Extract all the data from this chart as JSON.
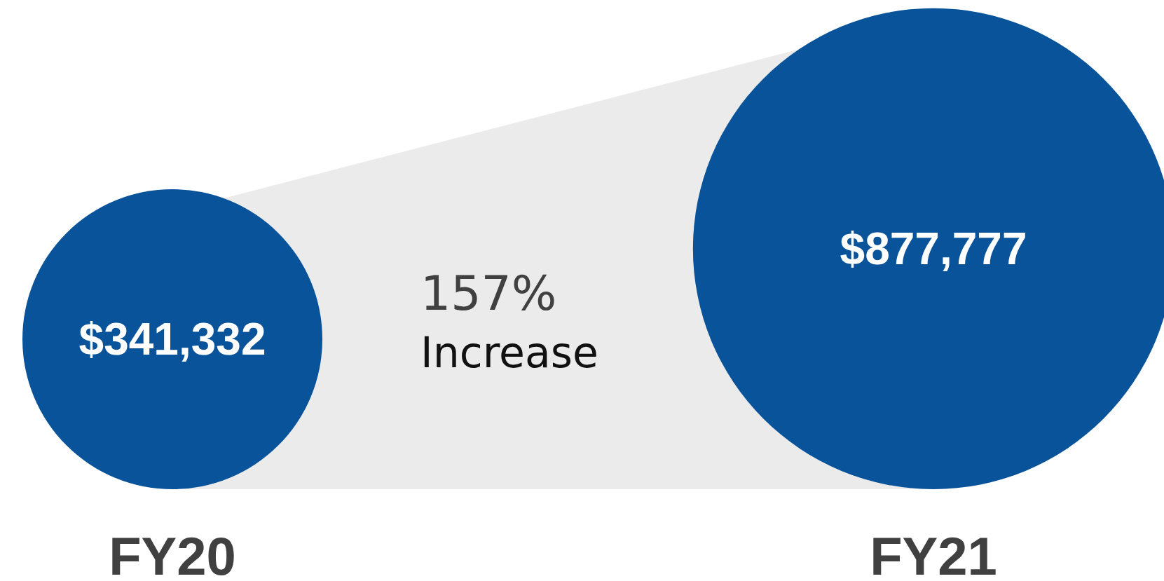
{
  "chart_data": {
    "type": "other",
    "categories": [
      "FY20",
      "FY21"
    ],
    "values": [
      341332,
      877777
    ],
    "value_labels": [
      "$341,332",
      "$877,777"
    ],
    "color": "#08539a",
    "annotations": [
      "157%",
      "Increase"
    ]
  }
}
